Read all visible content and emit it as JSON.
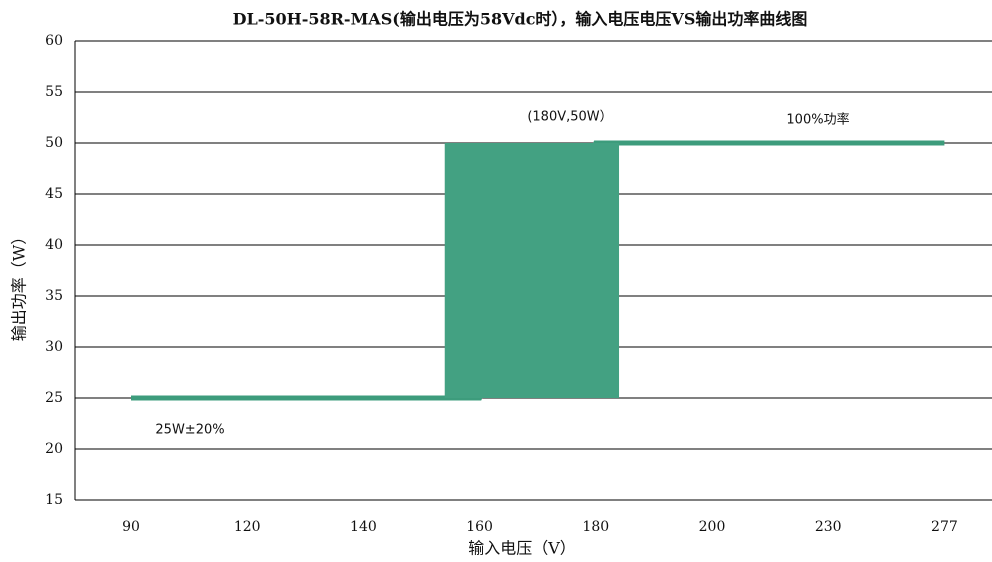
{
  "chart_data": {
    "type": "line",
    "title": "DL-50H-58R-MAS(输出电压为58Vdc时），输入电压电压VS输出功率曲线图",
    "x_label": "输入电压（V）",
    "y_label": "输出功率（W）",
    "categories": [
      "90",
      "120",
      "140",
      "160",
      "180",
      "200",
      "230",
      "277"
    ],
    "series": [
      {
        "color": "#3d9c7c",
        "values": [
          25,
          25,
          25,
          25,
          50,
          50,
          50,
          50
        ]
      }
    ],
    "box": {
      "low": 25,
      "high": 50,
      "color": "#43a182"
    },
    "annotations": [
      "(180V,50W）",
      "100%功率",
      "25W±20%"
    ],
    "ylim": [
      15,
      60
    ],
    "yticks": [
      15,
      20,
      25,
      30,
      35,
      40,
      45,
      50,
      55,
      60
    ],
    "grid": true
  }
}
